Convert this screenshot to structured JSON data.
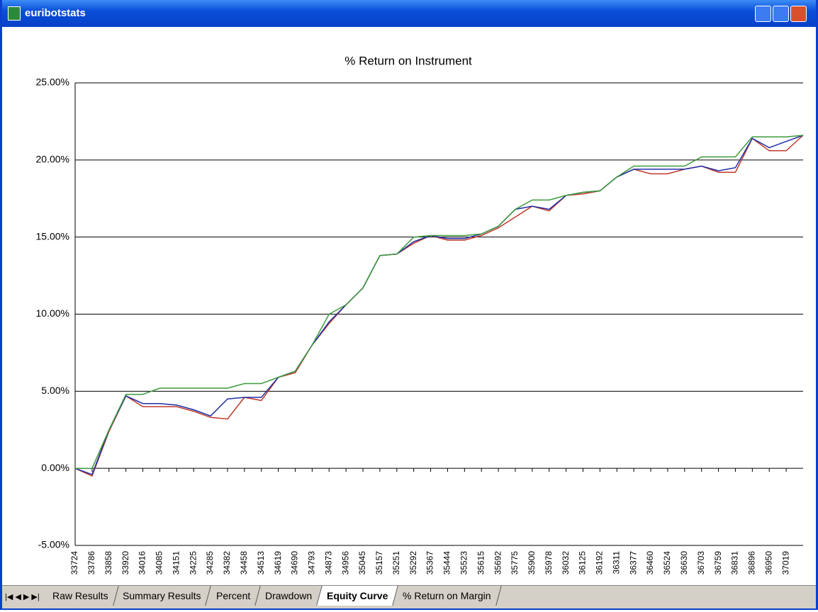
{
  "window": {
    "title": "euribotstats"
  },
  "tabs": {
    "items": [
      "Raw Results",
      "Summary Results",
      "Percent",
      "Drawdown",
      "Equity Curve",
      "% Return on Margin"
    ],
    "active": 4
  },
  "chart_data": {
    "type": "line",
    "title": "% Return on Instrument",
    "categories": [
      "33724",
      "33786",
      "33858",
      "33920",
      "34016",
      "34085",
      "34151",
      "34225",
      "34285",
      "34382",
      "34458",
      "34513",
      "34619",
      "34690",
      "34793",
      "34873",
      "34956",
      "35045",
      "35157",
      "35251",
      "35292",
      "35367",
      "35444",
      "35523",
      "35615",
      "35692",
      "35775",
      "35900",
      "35978",
      "36032",
      "36125",
      "36192",
      "36311",
      "36377",
      "36460",
      "36524",
      "36630",
      "36703",
      "36759",
      "36831",
      "36896",
      "36950",
      "37019",
      null
    ],
    "series": [
      {
        "color": "#c0392b",
        "values": [
          0,
          -0.5,
          2.4,
          4.7,
          4.0,
          4.0,
          4.0,
          3.7,
          3.3,
          3.2,
          4.6,
          4.4,
          5.9,
          6.2,
          8.0,
          9.4,
          10.6,
          11.7,
          13.8,
          13.9,
          14.6,
          15.1,
          14.8,
          14.8,
          15.1,
          15.6,
          16.3,
          17.0,
          16.7,
          17.7,
          17.8,
          18.0,
          18.9,
          19.4,
          19.1,
          19.1,
          19.4,
          19.6,
          19.2,
          19.2,
          21.4,
          20.6,
          20.6,
          21.6
        ]
      },
      {
        "color": "#1f2fa8",
        "values": [
          0,
          -0.4,
          2.5,
          4.7,
          4.2,
          4.2,
          4.1,
          3.8,
          3.4,
          4.5,
          4.6,
          4.6,
          5.9,
          6.3,
          8.0,
          9.5,
          10.6,
          11.7,
          13.8,
          13.9,
          14.7,
          15.1,
          14.9,
          14.9,
          15.2,
          15.7,
          16.8,
          17.0,
          16.8,
          17.7,
          17.9,
          18.0,
          18.9,
          19.4,
          19.4,
          19.4,
          19.4,
          19.6,
          19.3,
          19.5,
          21.4,
          20.8,
          21.2,
          21.6
        ]
      },
      {
        "color": "#3c9a3c",
        "values": [
          0,
          0,
          2.5,
          4.8,
          4.8,
          5.2,
          5.2,
          5.2,
          5.2,
          5.2,
          5.5,
          5.5,
          5.9,
          6.3,
          8.0,
          10.0,
          10.6,
          11.7,
          13.8,
          13.9,
          15.0,
          15.1,
          15.1,
          15.1,
          15.2,
          15.7,
          16.8,
          17.4,
          17.4,
          17.7,
          17.9,
          18.0,
          18.9,
          19.6,
          19.6,
          19.6,
          19.6,
          20.2,
          20.2,
          20.2,
          21.5,
          21.5,
          21.5,
          21.6
        ]
      }
    ],
    "ylim": [
      -5,
      25
    ],
    "yticks": [
      {
        "value": -5,
        "label": "-5.00%"
      },
      {
        "value": 0,
        "label": "0.00%"
      },
      {
        "value": 5,
        "label": "5.00%"
      },
      {
        "value": 10,
        "label": "10.00%"
      },
      {
        "value": 15,
        "label": "15.00%"
      },
      {
        "value": 20,
        "label": "20.00%"
      },
      {
        "value": 25,
        "label": "25.00%"
      }
    ],
    "grid": true
  }
}
